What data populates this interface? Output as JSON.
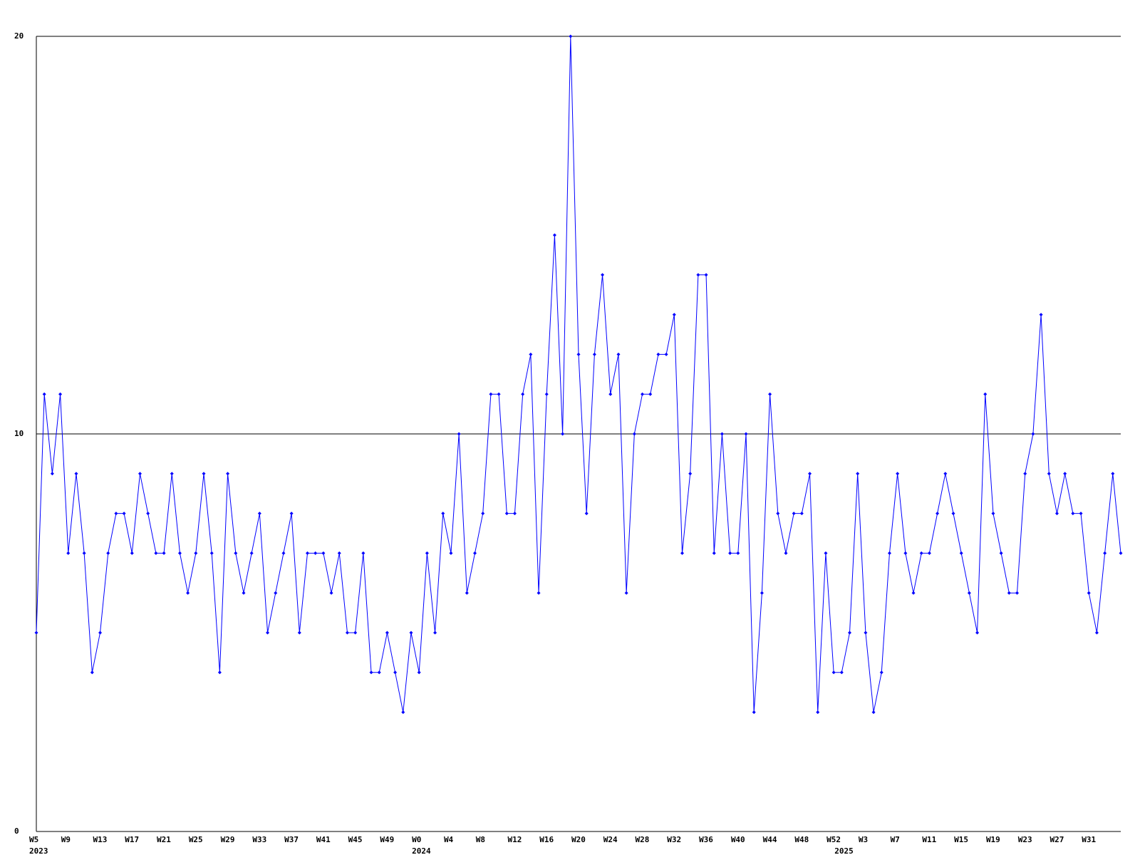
{
  "chart_data": {
    "type": "line",
    "categories": [
      "W5",
      null,
      null,
      null,
      "W9",
      null,
      null,
      null,
      "W13",
      null,
      null,
      null,
      "W17",
      null,
      null,
      null,
      "W21",
      null,
      null,
      null,
      "W25",
      null,
      null,
      null,
      "W29",
      null,
      null,
      null,
      "W33",
      null,
      null,
      null,
      "W37",
      null,
      null,
      null,
      "W41",
      null,
      null,
      null,
      "W45",
      null,
      null,
      null,
      "W49",
      null,
      null,
      null,
      "W0",
      null,
      null,
      null,
      "W4",
      null,
      null,
      null,
      "W8",
      null,
      null,
      null,
      "W12",
      null,
      null,
      null,
      "W16",
      null,
      null,
      null,
      "W20",
      null,
      null,
      null,
      "W24",
      null,
      null,
      null,
      "W28",
      null,
      null,
      null,
      "W32",
      null,
      null,
      null,
      "W36",
      null,
      null,
      null,
      "W40",
      null,
      null,
      null,
      "W44",
      null,
      null,
      null,
      "W48",
      null,
      null,
      null,
      "W52",
      null,
      null,
      null,
      "W3",
      null,
      null,
      null,
      "W7",
      null,
      null,
      null,
      "W11",
      null,
      null,
      null,
      "W15",
      null,
      null,
      null,
      "W19",
      null,
      null,
      null,
      "W23",
      null,
      null,
      null,
      "W27",
      null,
      null,
      null,
      "W31",
      null,
      null,
      null,
      null
    ],
    "year_labels": [
      "2023",
      null,
      null,
      null,
      null,
      null,
      null,
      null,
      null,
      null,
      null,
      null,
      null,
      null,
      null,
      null,
      null,
      null,
      null,
      null,
      null,
      null,
      null,
      null,
      null,
      null,
      null,
      null,
      null,
      null,
      null,
      null,
      null,
      null,
      null,
      null,
      null,
      null,
      null,
      null,
      null,
      null,
      null,
      null,
      null,
      null,
      null,
      null,
      "2024",
      null,
      null,
      null,
      null,
      null,
      null,
      null,
      null,
      null,
      null,
      null,
      null,
      null,
      null,
      null,
      null,
      null,
      null,
      null,
      null,
      null,
      null,
      null,
      null,
      null,
      null,
      null,
      null,
      null,
      null,
      null,
      null,
      null,
      null,
      null,
      null,
      null,
      null,
      null,
      null,
      null,
      null,
      null,
      null,
      null,
      null,
      null,
      null,
      null,
      null,
      null,
      null,
      "2025",
      null,
      null,
      null,
      null,
      null,
      null,
      null,
      null,
      null,
      null,
      null,
      null,
      null,
      null,
      null,
      null,
      null,
      null,
      null,
      null,
      null,
      null,
      null,
      null,
      null,
      null,
      null,
      null,
      null,
      null,
      null,
      null,
      null,
      null,
      null
    ],
    "series": [
      {
        "color": "#0000ff",
        "values": [
          5,
          11,
          9,
          11,
          7,
          9,
          7,
          4,
          5,
          7,
          8,
          8,
          7,
          9,
          8,
          7,
          7,
          9,
          7,
          6,
          7,
          9,
          7,
          4,
          9,
          7,
          6,
          7,
          8,
          5,
          6,
          7,
          8,
          5,
          7,
          7,
          7,
          6,
          7,
          5,
          5,
          7,
          4,
          4,
          5,
          4,
          3,
          5,
          4,
          7,
          5,
          8,
          7,
          10,
          6,
          7,
          8,
          11,
          11,
          8,
          8,
          11,
          12,
          6,
          11,
          15,
          10,
          20,
          12,
          8,
          12,
          14,
          11,
          12,
          6,
          10,
          11,
          11,
          12,
          12,
          13,
          7,
          9,
          14,
          14,
          7,
          10,
          7,
          7,
          10,
          3,
          6,
          11,
          8,
          7,
          8,
          8,
          9,
          3,
          7,
          4,
          4,
          5,
          9,
          5,
          3,
          4,
          7,
          9,
          7,
          6,
          7,
          7,
          8,
          9,
          8,
          7,
          6,
          5,
          11,
          8,
          7,
          6,
          6,
          9,
          10,
          13,
          9,
          8,
          9,
          8,
          8,
          6,
          5,
          7,
          9,
          7
        ]
      }
    ],
    "ylim": [
      0,
      20
    ],
    "yticks": [
      0,
      10,
      20
    ],
    "grid": true
  }
}
